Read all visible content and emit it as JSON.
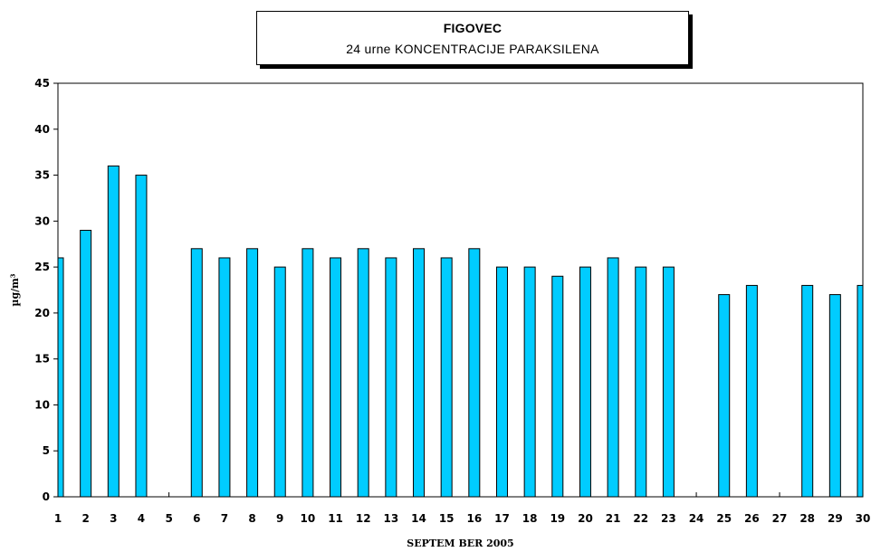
{
  "chart_data": {
    "type": "bar",
    "title": "FIGOVEC",
    "subtitle": "24 urne KONCENTRACIJE PARAKSILENA",
    "xlabel": "SEPTEM BER 2005",
    "ylabel": "µg/m³",
    "categories": [
      "1",
      "2",
      "3",
      "4",
      "5",
      "6",
      "7",
      "8",
      "9",
      "10",
      "11",
      "12",
      "13",
      "14",
      "15",
      "16",
      "17",
      "18",
      "19",
      "20",
      "21",
      "22",
      "23",
      "24",
      "25",
      "26",
      "27",
      "28",
      "29",
      "30"
    ],
    "values": [
      26,
      29,
      36,
      35,
      null,
      27,
      26,
      27,
      25,
      27,
      26,
      27,
      26,
      27,
      26,
      27,
      25,
      25,
      24,
      25,
      26,
      25,
      25,
      null,
      22,
      23,
      null,
      23,
      22,
      23
    ],
    "ylim": [
      0,
      45
    ],
    "yticks": [
      0,
      5,
      10,
      15,
      20,
      25,
      30,
      35,
      40,
      45
    ],
    "bar_color": "#00CCFF",
    "grid": false,
    "legend": "none"
  }
}
